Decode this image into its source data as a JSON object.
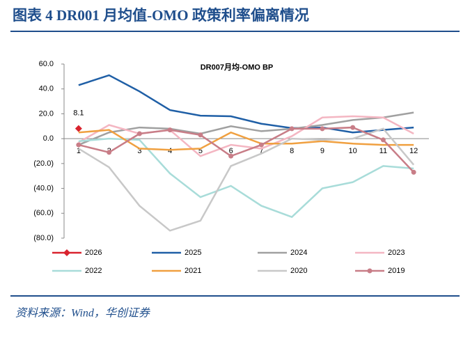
{
  "header": {
    "title": "图表 4 DR001 月均值-OMO 政策利率偏离情况"
  },
  "footer": {
    "source": "资料来源：Wind，华创证券"
  },
  "chart_data": {
    "type": "line",
    "title": "DR007月均-OMO BP",
    "categories": [
      "1",
      "2",
      "3",
      "4",
      "5",
      "6",
      "7",
      "8",
      "9",
      "10",
      "11",
      "12"
    ],
    "ylim": [
      -80,
      60
    ],
    "yticks": [
      {
        "value": 60,
        "label": "60.0"
      },
      {
        "value": 40,
        "label": "40.0"
      },
      {
        "value": 20,
        "label": "20.0"
      },
      {
        "value": 0,
        "label": "0.0"
      },
      {
        "value": -20,
        "label": "(20.0)"
      },
      {
        "value": -40,
        "label": "(40.0)"
      },
      {
        "value": -60,
        "label": "(60.0)"
      },
      {
        "value": -80,
        "label": "(80.0)"
      }
    ],
    "series": [
      {
        "name": "2026",
        "color": "#d9232e",
        "marker": "diamond",
        "values": [
          8.1,
          null,
          null,
          null,
          null,
          null,
          null,
          null,
          null,
          null,
          null,
          null
        ],
        "value_labels": [
          "8.1",
          null,
          null,
          null,
          null,
          null,
          null,
          null,
          null,
          null,
          null,
          null
        ]
      },
      {
        "name": "2025",
        "color": "#1f5fa6",
        "values": [
          43,
          51,
          38,
          23,
          18.5,
          18,
          12,
          8.5,
          9,
          5,
          7,
          9
        ]
      },
      {
        "name": "2024",
        "color": "#a0a0a0",
        "values": [
          -5,
          5,
          9,
          8,
          4,
          10,
          6,
          8,
          11,
          15,
          17,
          21
        ]
      },
      {
        "name": "2023",
        "color": "#f4b6c2",
        "values": [
          -3,
          11,
          4,
          7,
          -14,
          -5,
          -8,
          2,
          17,
          18,
          17,
          4
        ]
      },
      {
        "name": "2022",
        "color": "#a8dcd9",
        "values": [
          -2,
          0,
          -1,
          -28,
          -47,
          -38,
          -54,
          -63,
          -40,
          -35,
          -22,
          -24
        ]
      },
      {
        "name": "2021",
        "color": "#f0a040",
        "values": [
          5,
          7,
          -8,
          -9,
          -8,
          5,
          -4,
          -4,
          -2,
          -4,
          -5,
          -5
        ]
      },
      {
        "name": "2020",
        "color": "#c8c8c8",
        "values": [
          -8,
          -23,
          -54,
          -74,
          -66,
          -22,
          -12,
          0,
          -1,
          0,
          8,
          -21
        ]
      },
      {
        "name": "2019",
        "color": "#c87d87",
        "marker": "circle",
        "values": [
          -5,
          -11,
          4,
          7,
          3,
          -14,
          -5,
          8,
          8,
          9,
          -1,
          -27
        ]
      }
    ]
  }
}
